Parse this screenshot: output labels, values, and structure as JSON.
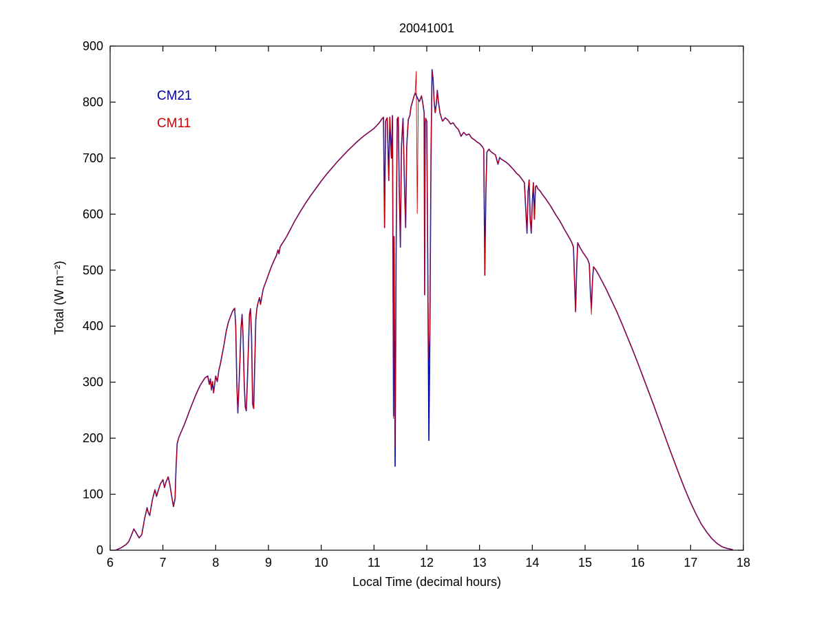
{
  "figure": {
    "background": "#ffffff",
    "axis_color": "#000000"
  },
  "chart_data": {
    "type": "line",
    "title": "20041001",
    "xlabel": "Local Time (decimal hours)",
    "ylabel": "Total (W m⁻²)",
    "axes": {
      "xmin": 6,
      "xmax": 18,
      "ymin": 0,
      "ymax": 900,
      "xticks": [
        6,
        7,
        8,
        9,
        10,
        11,
        12,
        13,
        14,
        15,
        16,
        17,
        18
      ],
      "yticks": [
        0,
        100,
        200,
        300,
        400,
        500,
        600,
        700,
        800,
        900
      ],
      "grid": false,
      "tick_direction": "in"
    },
    "legend_position": "upper-left-inside",
    "base_points": [
      [
        6.1,
        0
      ],
      [
        6.15,
        2
      ],
      [
        6.2,
        4
      ],
      [
        6.25,
        7
      ],
      [
        6.3,
        10
      ],
      [
        6.35,
        15
      ],
      [
        6.4,
        26
      ],
      [
        6.45,
        38
      ],
      [
        6.5,
        30
      ],
      [
        6.55,
        22
      ],
      [
        6.6,
        28
      ],
      [
        6.65,
        55
      ],
      [
        6.7,
        76
      ],
      [
        6.72,
        68
      ],
      [
        6.75,
        62
      ],
      [
        6.8,
        90
      ],
      [
        6.85,
        108
      ],
      [
        6.88,
        96
      ],
      [
        6.9,
        103
      ],
      [
        6.95,
        118
      ],
      [
        7.0,
        126
      ],
      [
        7.03,
        112
      ],
      [
        7.06,
        122
      ],
      [
        7.1,
        131
      ],
      [
        7.13,
        118
      ],
      [
        7.16,
        100
      ],
      [
        7.2,
        78
      ],
      [
        7.23,
        92
      ],
      [
        7.25,
        150
      ],
      [
        7.27,
        190
      ],
      [
        7.3,
        201
      ],
      [
        7.35,
        212
      ],
      [
        7.4,
        223
      ],
      [
        7.45,
        235
      ],
      [
        7.5,
        248
      ],
      [
        7.55,
        260
      ],
      [
        7.6,
        272
      ],
      [
        7.65,
        283
      ],
      [
        7.7,
        293
      ],
      [
        7.75,
        301
      ],
      [
        7.8,
        308
      ],
      [
        7.85,
        311
      ],
      [
        7.88,
        296
      ],
      [
        7.9,
        306
      ],
      [
        7.92,
        286
      ],
      [
        7.94,
        301
      ],
      [
        7.96,
        281
      ],
      [
        7.98,
        296
      ],
      [
        8.0,
        311
      ],
      [
        8.03,
        301
      ],
      [
        8.06,
        321
      ],
      [
        8.09,
        333
      ],
      [
        8.12,
        348
      ],
      [
        8.16,
        368
      ],
      [
        8.2,
        391
      ],
      [
        8.24,
        407
      ],
      [
        8.28,
        417
      ],
      [
        8.32,
        427
      ],
      [
        8.36,
        432
      ],
      [
        8.38,
        400
      ],
      [
        8.4,
        300
      ],
      [
        8.42,
        245
      ],
      [
        8.44,
        290
      ],
      [
        8.46,
        340
      ],
      [
        8.48,
        396
      ],
      [
        8.5,
        421
      ],
      [
        8.52,
        380
      ],
      [
        8.54,
        300
      ],
      [
        8.56,
        256
      ],
      [
        8.58,
        249
      ],
      [
        8.6,
        301
      ],
      [
        8.62,
        361
      ],
      [
        8.64,
        421
      ],
      [
        8.66,
        431
      ],
      [
        8.68,
        381
      ],
      [
        8.7,
        261
      ],
      [
        8.72,
        253
      ],
      [
        8.74,
        331
      ],
      [
        8.76,
        411
      ],
      [
        8.78,
        431
      ],
      [
        8.8,
        441
      ],
      [
        8.83,
        451
      ],
      [
        8.85,
        439
      ],
      [
        8.88,
        456
      ],
      [
        8.9,
        466
      ],
      [
        8.95,
        479
      ],
      [
        9.0,
        492
      ],
      [
        9.05,
        505
      ],
      [
        9.1,
        516
      ],
      [
        9.15,
        526
      ],
      [
        9.18,
        536
      ],
      [
        9.2,
        529
      ],
      [
        9.22,
        541
      ],
      [
        9.25,
        546
      ],
      [
        9.3,
        553
      ],
      [
        9.35,
        561
      ],
      [
        9.4,
        570
      ],
      [
        9.45,
        579
      ],
      [
        9.5,
        588
      ],
      [
        9.6,
        604
      ],
      [
        9.7,
        619
      ],
      [
        9.8,
        633
      ],
      [
        9.9,
        646
      ],
      [
        10.0,
        659
      ],
      [
        10.1,
        671
      ],
      [
        10.2,
        682
      ],
      [
        10.3,
        693
      ],
      [
        10.4,
        703
      ],
      [
        10.5,
        713
      ],
      [
        10.6,
        722
      ],
      [
        10.7,
        731
      ],
      [
        10.8,
        739
      ],
      [
        10.9,
        746
      ],
      [
        11.0,
        753
      ],
      [
        11.05,
        758
      ],
      [
        11.1,
        763
      ],
      [
        11.15,
        770
      ],
      [
        11.18,
        773
      ],
      [
        11.2,
        576
      ],
      [
        11.22,
        766
      ],
      [
        11.25,
        772
      ],
      [
        11.28,
        660
      ],
      [
        11.3,
        773
      ],
      [
        11.33,
        700
      ],
      [
        11.35,
        776
      ],
      [
        11.37,
        240
      ],
      [
        11.38,
        560
      ],
      [
        11.4,
        150
      ],
      [
        11.42,
        540
      ],
      [
        11.44,
        770
      ],
      [
        11.46,
        773
      ],
      [
        11.48,
        640
      ],
      [
        11.5,
        541
      ],
      [
        11.52,
        721
      ],
      [
        11.55,
        771
      ],
      [
        11.58,
        641
      ],
      [
        11.6,
        576
      ],
      [
        11.62,
        721
      ],
      [
        11.65,
        769
      ],
      [
        11.68,
        776
      ],
      [
        11.7,
        791
      ],
      [
        11.73,
        801
      ],
      [
        11.76,
        811
      ],
      [
        11.78,
        816
      ],
      [
        11.8,
        812
      ],
      [
        11.82,
        808
      ],
      [
        11.84,
        804
      ],
      [
        11.86,
        801
      ],
      [
        11.88,
        806
      ],
      [
        11.9,
        811
      ],
      [
        11.92,
        801
      ],
      [
        11.95,
        781
      ],
      [
        11.96,
        456
      ],
      [
        11.97,
        761
      ],
      [
        11.98,
        771
      ],
      [
        12.0,
        766
      ],
      [
        12.02,
        500
      ],
      [
        12.04,
        196
      ],
      [
        12.06,
        400
      ],
      [
        12.08,
        700
      ],
      [
        12.1,
        858
      ],
      [
        12.12,
        841
      ],
      [
        12.14,
        801
      ],
      [
        12.16,
        781
      ],
      [
        12.18,
        796
      ],
      [
        12.2,
        821
      ],
      [
        12.22,
        801
      ],
      [
        12.25,
        781
      ],
      [
        12.28,
        771
      ],
      [
        12.3,
        766
      ],
      [
        12.35,
        772
      ],
      [
        12.4,
        768
      ],
      [
        12.45,
        761
      ],
      [
        12.5,
        763
      ],
      [
        12.55,
        756
      ],
      [
        12.6,
        751
      ],
      [
        12.65,
        739
      ],
      [
        12.7,
        746
      ],
      [
        12.75,
        741
      ],
      [
        12.8,
        743
      ],
      [
        12.85,
        736
      ],
      [
        12.9,
        733
      ],
      [
        12.95,
        729
      ],
      [
        13.0,
        726
      ],
      [
        13.05,
        721
      ],
      [
        13.08,
        716
      ],
      [
        13.1,
        491
      ],
      [
        13.12,
        641
      ],
      [
        13.14,
        711
      ],
      [
        13.18,
        716
      ],
      [
        13.2,
        713
      ],
      [
        13.25,
        709
      ],
      [
        13.3,
        706
      ],
      [
        13.35,
        689
      ],
      [
        13.38,
        701
      ],
      [
        13.4,
        699
      ],
      [
        13.45,
        696
      ],
      [
        13.5,
        693
      ],
      [
        13.55,
        689
      ],
      [
        13.6,
        684
      ],
      [
        13.65,
        679
      ],
      [
        13.7,
        673
      ],
      [
        13.75,
        669
      ],
      [
        13.8,
        663
      ],
      [
        13.85,
        656
      ],
      [
        13.88,
        601
      ],
      [
        13.9,
        566
      ],
      [
        13.92,
        641
      ],
      [
        13.94,
        661
      ],
      [
        13.96,
        591
      ],
      [
        13.98,
        566
      ],
      [
        14.0,
        621
      ],
      [
        14.02,
        656
      ],
      [
        14.04,
        591
      ],
      [
        14.06,
        649
      ],
      [
        14.08,
        651
      ],
      [
        14.1,
        646
      ],
      [
        14.15,
        641
      ],
      [
        14.2,
        634
      ],
      [
        14.25,
        628
      ],
      [
        14.3,
        621
      ],
      [
        14.35,
        614
      ],
      [
        14.4,
        606
      ],
      [
        14.45,
        598
      ],
      [
        14.5,
        591
      ],
      [
        14.55,
        583
      ],
      [
        14.6,
        574
      ],
      [
        14.65,
        566
      ],
      [
        14.7,
        558
      ],
      [
        14.75,
        549
      ],
      [
        14.78,
        541
      ],
      [
        14.8,
        481
      ],
      [
        14.82,
        426
      ],
      [
        14.84,
        501
      ],
      [
        14.86,
        549
      ],
      [
        14.9,
        541
      ],
      [
        14.95,
        533
      ],
      [
        15.0,
        526
      ],
      [
        15.05,
        519
      ],
      [
        15.08,
        511
      ],
      [
        15.1,
        461
      ],
      [
        15.12,
        431
      ],
      [
        15.14,
        481
      ],
      [
        15.16,
        506
      ],
      [
        15.2,
        501
      ],
      [
        15.25,
        493
      ],
      [
        15.3,
        484
      ],
      [
        15.35,
        475
      ],
      [
        15.4,
        466
      ],
      [
        15.45,
        456
      ],
      [
        15.5,
        446
      ],
      [
        15.6,
        426
      ],
      [
        15.7,
        404
      ],
      [
        15.8,
        381
      ],
      [
        15.9,
        358
      ],
      [
        16.0,
        334
      ],
      [
        16.1,
        309
      ],
      [
        16.2,
        284
      ],
      [
        16.3,
        259
      ],
      [
        16.4,
        233
      ],
      [
        16.5,
        207
      ],
      [
        16.6,
        181
      ],
      [
        16.7,
        156
      ],
      [
        16.8,
        131
      ],
      [
        16.9,
        107
      ],
      [
        17.0,
        85
      ],
      [
        17.1,
        65
      ],
      [
        17.2,
        47
      ],
      [
        17.3,
        33
      ],
      [
        17.4,
        21
      ],
      [
        17.5,
        12
      ],
      [
        17.6,
        6
      ],
      [
        17.7,
        3
      ],
      [
        17.8,
        1
      ]
    ],
    "series": [
      {
        "name": "CM21",
        "color": "#0000B4",
        "width": 1.6,
        "overrides": {}
      },
      {
        "name": "CM11",
        "color": "#D40000",
        "width": 0.9,
        "overrides": {
          "11.37": 235,
          "11.40": 185,
          "11.80": 855,
          "11.82": 601,
          "12.04": 341,
          "15.12": 421
        }
      }
    ]
  }
}
